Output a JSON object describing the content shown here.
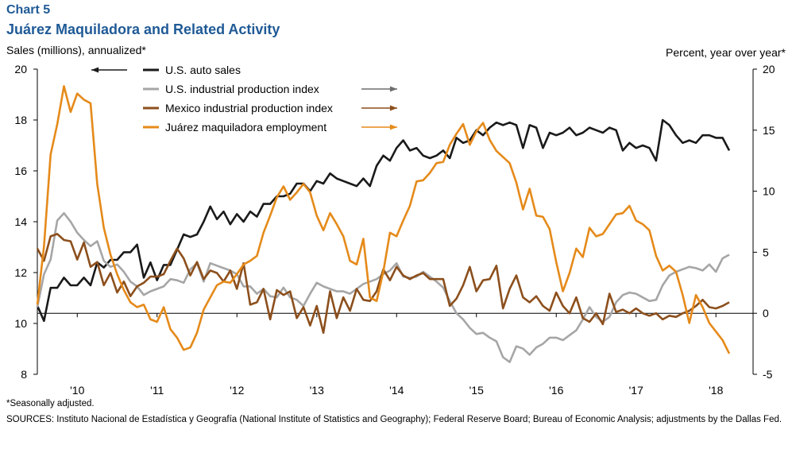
{
  "header": {
    "chart_label": "Chart 5",
    "title": "Juárez Maquiladora and Related Activity"
  },
  "footer": {
    "note": "*Seasonally adjusted.",
    "sources": "SOURCES: Instituto Nacional de Estadística y Geografía (National Institute of Statistics and Geography); Federal Reserve Board; Bureau of Economic Analysis; adjustments by the Dallas Fed."
  },
  "chart_data": {
    "type": "line",
    "title": "Juárez Maquiladora and Related Activity",
    "xlabel": "",
    "ylabel_left": "Sales (millions), annualized*",
    "ylabel_right": "Percent, year over year*",
    "ylim_left": [
      8,
      20
    ],
    "ylim_right": [
      -5,
      20
    ],
    "yticks_left": [
      8,
      10,
      12,
      14,
      16,
      18,
      20
    ],
    "yticks_right": [
      -5,
      0,
      5,
      10,
      15,
      20
    ],
    "xticks": [
      {
        "label": "'10",
        "x": 2010.0
      },
      {
        "label": "'11",
        "x": 2011.0
      },
      {
        "label": "'12",
        "x": 2012.0
      },
      {
        "label": "'13",
        "x": 2013.0
      },
      {
        "label": "'14",
        "x": 2014.0
      },
      {
        "label": "'15",
        "x": 2015.0
      },
      {
        "label": "'16",
        "x": 2016.0
      },
      {
        "label": "'17",
        "x": 2017.0
      },
      {
        "label": "'18",
        "x": 2018.0
      }
    ],
    "x_start": 2009.5,
    "x_step": 0.0833333,
    "zero_line_right": 0,
    "grid": false,
    "legend_position": "top-left",
    "series": [
      {
        "name": "U.S. auto sales",
        "axis": "left",
        "color": "#1a1a1a",
        "width": 2.6,
        "values": [
          10.7,
          10.1,
          11.4,
          11.4,
          11.8,
          11.5,
          11.5,
          11.8,
          11.5,
          12.4,
          12.2,
          12.5,
          12.5,
          12.8,
          12.8,
          13.1,
          11.8,
          12.4,
          11.7,
          12.3,
          12.3,
          12.9,
          13.5,
          13.4,
          13.5,
          14.0,
          14.6,
          14.1,
          14.4,
          13.9,
          14.3,
          14.0,
          14.4,
          14.2,
          14.7,
          14.7,
          15.0,
          15.0,
          15.1,
          15.5,
          15.5,
          15.2,
          15.6,
          15.5,
          15.9,
          15.7,
          15.6,
          15.5,
          15.4,
          15.7,
          15.4,
          16.2,
          16.6,
          16.4,
          16.9,
          17.2,
          16.8,
          16.9,
          16.6,
          16.5,
          16.6,
          16.8,
          16.5,
          17.3,
          17.1,
          17.2,
          17.6,
          17.4,
          17.7,
          17.9,
          17.8,
          17.9,
          17.8,
          16.9,
          17.8,
          17.7,
          16.9,
          17.5,
          17.4,
          17.5,
          17.7,
          17.4,
          17.5,
          17.7,
          17.6,
          17.5,
          17.7,
          17.6,
          16.8,
          17.1,
          16.9,
          17.0,
          16.9,
          16.4,
          18.0,
          17.8,
          17.4,
          17.1,
          17.2,
          17.1,
          17.4,
          17.4,
          17.3,
          17.3,
          16.8
        ]
      },
      {
        "name": "U.S. industrial production index",
        "axis": "right",
        "color": "#a6a6a6",
        "width": 2.6,
        "values": [
          0.5,
          3.2,
          4.4,
          7.6,
          8.2,
          7.5,
          6.6,
          6.0,
          5.5,
          5.9,
          4.3,
          3.8,
          4.0,
          3.4,
          2.6,
          2.2,
          1.5,
          1.8,
          2.0,
          2.2,
          2.8,
          2.7,
          2.5,
          3.6,
          4.1,
          2.6,
          4.1,
          3.9,
          3.7,
          3.5,
          3.2,
          2.2,
          2.2,
          1.6,
          2.0,
          1.4,
          1.3,
          2.1,
          1.3,
          1.1,
          0.6,
          1.6,
          2.5,
          2.2,
          2.0,
          1.8,
          1.8,
          1.6,
          2.0,
          2.4,
          2.6,
          2.8,
          3.2,
          3.5,
          4.1,
          3.0,
          2.9,
          3.0,
          3.4,
          3.0,
          2.6,
          2.1,
          1.0,
          0.0,
          -0.5,
          -1.2,
          -1.7,
          -1.6,
          -2.0,
          -2.3,
          -3.6,
          -4.0,
          -2.7,
          -2.9,
          -3.4,
          -2.8,
          -2.5,
          -2.0,
          -2.0,
          -2.2,
          -1.8,
          -1.4,
          -0.5,
          0.5,
          -0.3,
          -0.7,
          -0.3,
          0.9,
          1.5,
          1.7,
          1.6,
          1.3,
          1.0,
          1.1,
          2.3,
          3.1,
          3.4,
          3.6,
          3.8,
          3.7,
          3.5,
          4.0,
          3.4,
          4.5,
          4.8
        ]
      },
      {
        "name": "Mexico industrial production index",
        "axis": "right",
        "color": "#8c4f1c",
        "width": 2.6,
        "values": [
          5.3,
          4.3,
          6.3,
          6.5,
          6.0,
          5.9,
          4.4,
          5.8,
          3.8,
          4.2,
          2.3,
          3.3,
          1.7,
          2.6,
          1.4,
          2.2,
          2.5,
          3.0,
          3.0,
          3.2,
          4.3,
          5.3,
          4.5,
          3.1,
          4.2,
          2.8,
          3.5,
          3.3,
          2.6,
          3.5,
          2.0,
          4.1,
          0.7,
          0.9,
          2.0,
          -0.5,
          1.9,
          1.5,
          1.8,
          -0.4,
          0.5,
          -1.0,
          0.6,
          -1.6,
          1.8,
          -0.4,
          1.3,
          0.2,
          2.0,
          1.1,
          1.0,
          1.8,
          3.6,
          2.7,
          3.8,
          3.1,
          2.8,
          3.1,
          3.3,
          2.8,
          2.8,
          2.8,
          0.6,
          1.2,
          2.3,
          3.8,
          1.8,
          2.7,
          2.8,
          3.9,
          0.4,
          2.0,
          3.1,
          1.3,
          0.9,
          1.4,
          0.6,
          0.2,
          1.7,
          0.6,
          0.0,
          1.3,
          -0.4,
          -0.7,
          0.0,
          -0.9,
          1.6,
          0.1,
          0.3,
          0.0,
          0.4,
          0.0,
          -0.2,
          0.0,
          -0.5,
          -0.2,
          -0.3,
          0.0,
          0.2,
          0.6,
          1.1,
          0.5,
          0.4,
          0.6,
          0.9
        ]
      },
      {
        "name": "Juárez maquiladora employment",
        "axis": "right",
        "color": "#e58a1a",
        "width": 2.6,
        "values": [
          0.7,
          5.5,
          13.0,
          15.5,
          18.6,
          16.5,
          18.0,
          17.5,
          17.2,
          10.6,
          7.0,
          4.8,
          3.2,
          1.9,
          0.9,
          0.5,
          0.7,
          -0.5,
          -0.7,
          0.5,
          -1.3,
          -2.0,
          -3.0,
          -2.8,
          -1.6,
          0.3,
          1.3,
          2.3,
          2.6,
          2.5,
          3.2,
          4.0,
          4.3,
          4.7,
          6.6,
          8.0,
          9.5,
          10.4,
          9.3,
          9.9,
          10.6,
          9.9,
          8.0,
          6.8,
          8.2,
          7.3,
          6.3,
          4.3,
          4.0,
          6.1,
          1.3,
          1.0,
          3.4,
          6.6,
          6.3,
          7.6,
          8.8,
          10.8,
          10.9,
          11.5,
          12.3,
          12.4,
          13.8,
          14.7,
          15.5,
          13.8,
          14.9,
          15.6,
          14.2,
          13.3,
          12.8,
          12.3,
          10.7,
          8.5,
          10.2,
          8.0,
          7.9,
          6.9,
          4.2,
          1.8,
          3.3,
          5.3,
          4.6,
          7.0,
          6.3,
          6.5,
          7.3,
          8.1,
          8.2,
          8.8,
          7.6,
          7.3,
          6.8,
          4.7,
          3.5,
          3.9,
          3.4,
          1.5,
          -0.8,
          1.5,
          0.5,
          -0.8,
          -1.5,
          -2.2,
          -3.3
        ]
      }
    ],
    "legend_arrows": [
      {
        "series": "U.S. auto sales",
        "direction": "left",
        "color": "#1a1a1a"
      },
      {
        "series": "U.S. industrial production index",
        "direction": "right",
        "color": "#6e6e6e"
      },
      {
        "series": "Mexico industrial production index",
        "direction": "right",
        "color": "#8c4f1c"
      },
      {
        "series": "Juárez maquiladora employment",
        "direction": "right",
        "color": "#e58a1a"
      }
    ]
  }
}
